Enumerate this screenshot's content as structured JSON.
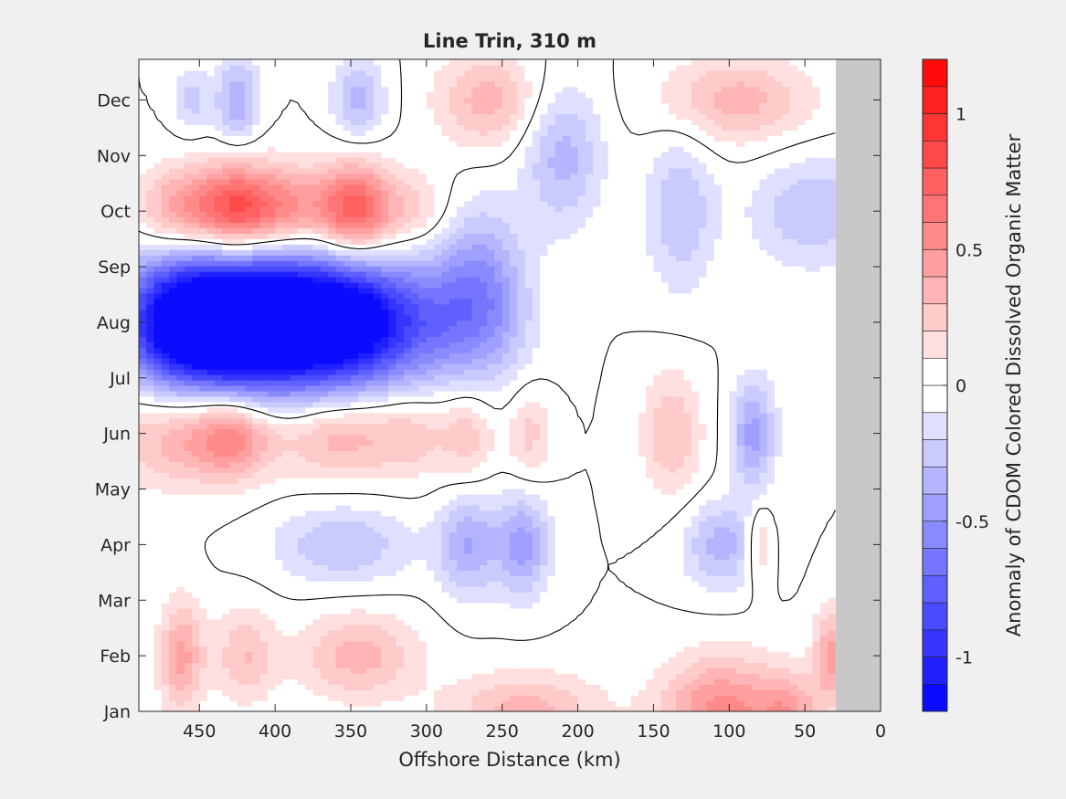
{
  "chart_data": {
    "type": "heatmap",
    "title": "Line Trin, 310 m",
    "xlabel": "Offshore Distance (km)",
    "ylabel": "",
    "xlim": [
      490,
      0
    ],
    "x_reversed": true,
    "x_ticks": [
      450,
      400,
      350,
      300,
      250,
      200,
      150,
      100,
      50,
      0
    ],
    "y_ticks": [
      "Jan",
      "Feb",
      "Mar",
      "Apr",
      "May",
      "Jun",
      "Jul",
      "Aug",
      "Sep",
      "Oct",
      "Nov",
      "Dec"
    ],
    "data_extent_km": [
      490,
      30
    ],
    "colorbar": {
      "label": "Anomaly of CDOM Colored Dissolved Organic Matter",
      "range": [
        -1.2,
        1.2
      ],
      "ticks": [
        -1,
        -0.5,
        0,
        0.5,
        1
      ],
      "levels": 24,
      "colormap": "blue-white-red"
    },
    "zero_contour": true,
    "features": [
      {
        "month": "Aug",
        "x_km": 470,
        "sigma_km": 26,
        "sigma_month": 0.85,
        "value": -1.0
      },
      {
        "month": "Aug",
        "x_km": 430,
        "sigma_km": 28,
        "sigma_month": 0.9,
        "value": -1.15
      },
      {
        "month": "Aug",
        "x_km": 390,
        "sigma_km": 32,
        "sigma_month": 0.9,
        "value": -1.05
      },
      {
        "month": "Aug",
        "x_km": 348,
        "sigma_km": 28,
        "sigma_month": 0.85,
        "value": -0.95
      },
      {
        "month": "Aug",
        "x_km": 300,
        "sigma_km": 26,
        "sigma_month": 0.8,
        "value": -0.45
      },
      {
        "month": "Aug",
        "x_km": 260,
        "sigma_km": 22,
        "sigma_month": 0.9,
        "value": -0.3
      },
      {
        "month": "Oct",
        "x_km": 465,
        "sigma_km": 18,
        "sigma_month": 0.55,
        "value": 0.45
      },
      {
        "month": "Oct",
        "x_km": 428,
        "sigma_km": 18,
        "sigma_month": 0.6,
        "value": 0.8
      },
      {
        "month": "Oct",
        "x_km": 393,
        "sigma_km": 20,
        "sigma_month": 0.55,
        "value": 0.55
      },
      {
        "month": "Oct",
        "x_km": 348,
        "sigma_km": 17,
        "sigma_month": 0.6,
        "value": 0.8
      },
      {
        "month": "Oct",
        "x_km": 310,
        "sigma_km": 18,
        "sigma_month": 0.5,
        "value": 0.25
      },
      {
        "month": "Dec",
        "x_km": 455,
        "sigma_km": 8,
        "sigma_month": 0.4,
        "value": -0.25
      },
      {
        "month": "Dec",
        "x_km": 425,
        "sigma_km": 10,
        "sigma_month": 0.55,
        "value": -0.4
      },
      {
        "month": "Dec",
        "x_km": 345,
        "sigma_km": 12,
        "sigma_month": 0.5,
        "value": -0.35
      },
      {
        "month": "Dec",
        "x_km": 260,
        "sigma_km": 24,
        "sigma_month": 0.6,
        "value": 0.35
      },
      {
        "month": "Dec",
        "x_km": 95,
        "sigma_km": 35,
        "sigma_month": 0.55,
        "value": 0.35
      },
      {
        "month": "Nov",
        "x_km": 210,
        "sigma_km": 18,
        "sigma_month": 0.9,
        "value": -0.35
      },
      {
        "month": "Oct",
        "x_km": 132,
        "sigma_km": 16,
        "sigma_month": 1.0,
        "value": -0.3
      },
      {
        "month": "Oct",
        "x_km": 45,
        "sigma_km": 28,
        "sigma_month": 0.7,
        "value": -0.3
      },
      {
        "month": "Sep",
        "x_km": 265,
        "sigma_km": 20,
        "sigma_month": 0.9,
        "value": -0.3
      },
      {
        "month": "Jun",
        "x_km": 470,
        "sigma_km": 30,
        "sigma_month": 0.65,
        "value": 0.35
      },
      {
        "month": "Jun",
        "x_km": 428,
        "sigma_km": 20,
        "sigma_month": 0.55,
        "value": 0.55
      },
      {
        "month": "Jun",
        "x_km": 360,
        "sigma_km": 26,
        "sigma_month": 0.55,
        "value": 0.4
      },
      {
        "month": "Jun",
        "x_km": 310,
        "sigma_km": 20,
        "sigma_month": 0.55,
        "value": 0.25
      },
      {
        "month": "Jun",
        "x_km": 272,
        "sigma_km": 12,
        "sigma_month": 0.6,
        "value": 0.25
      },
      {
        "month": "Jun",
        "x_km": 232,
        "sigma_km": 10,
        "sigma_month": 0.6,
        "value": 0.25
      },
      {
        "month": "Jun",
        "x_km": 138,
        "sigma_km": 14,
        "sigma_month": 0.8,
        "value": 0.3
      },
      {
        "month": "Jun",
        "x_km": 84,
        "sigma_km": 10,
        "sigma_month": 0.7,
        "value": -0.45
      },
      {
        "month": "Apr",
        "x_km": 355,
        "sigma_km": 32,
        "sigma_month": 0.5,
        "value": -0.3
      },
      {
        "month": "Apr",
        "x_km": 272,
        "sigma_km": 14,
        "sigma_month": 0.65,
        "value": -0.4
      },
      {
        "month": "Apr",
        "x_km": 236,
        "sigma_km": 12,
        "sigma_month": 0.65,
        "value": -0.45
      },
      {
        "month": "Apr",
        "x_km": 105,
        "sigma_km": 18,
        "sigma_month": 0.55,
        "value": -0.35
      },
      {
        "month": "Apr",
        "x_km": 80,
        "sigma_km": 6,
        "sigma_month": 0.5,
        "value": 0.3
      },
      {
        "month": "Feb",
        "x_km": 462,
        "sigma_km": 10,
        "sigma_month": 0.7,
        "value": 0.45
      },
      {
        "month": "Feb",
        "x_km": 420,
        "sigma_km": 14,
        "sigma_month": 0.6,
        "value": 0.3
      },
      {
        "month": "Feb",
        "x_km": 345,
        "sigma_km": 28,
        "sigma_month": 0.55,
        "value": 0.35
      },
      {
        "month": "Jan",
        "x_km": 235,
        "sigma_km": 35,
        "sigma_month": 0.5,
        "value": 0.35
      },
      {
        "month": "Jan",
        "x_km": 105,
        "sigma_km": 28,
        "sigma_month": 0.7,
        "value": 0.55
      },
      {
        "month": "Jan",
        "x_km": 60,
        "sigma_km": 14,
        "sigma_month": 0.5,
        "value": 0.35
      },
      {
        "month": "Feb",
        "x_km": 32,
        "sigma_km": 8,
        "sigma_month": 0.6,
        "value": 0.45
      }
    ]
  }
}
